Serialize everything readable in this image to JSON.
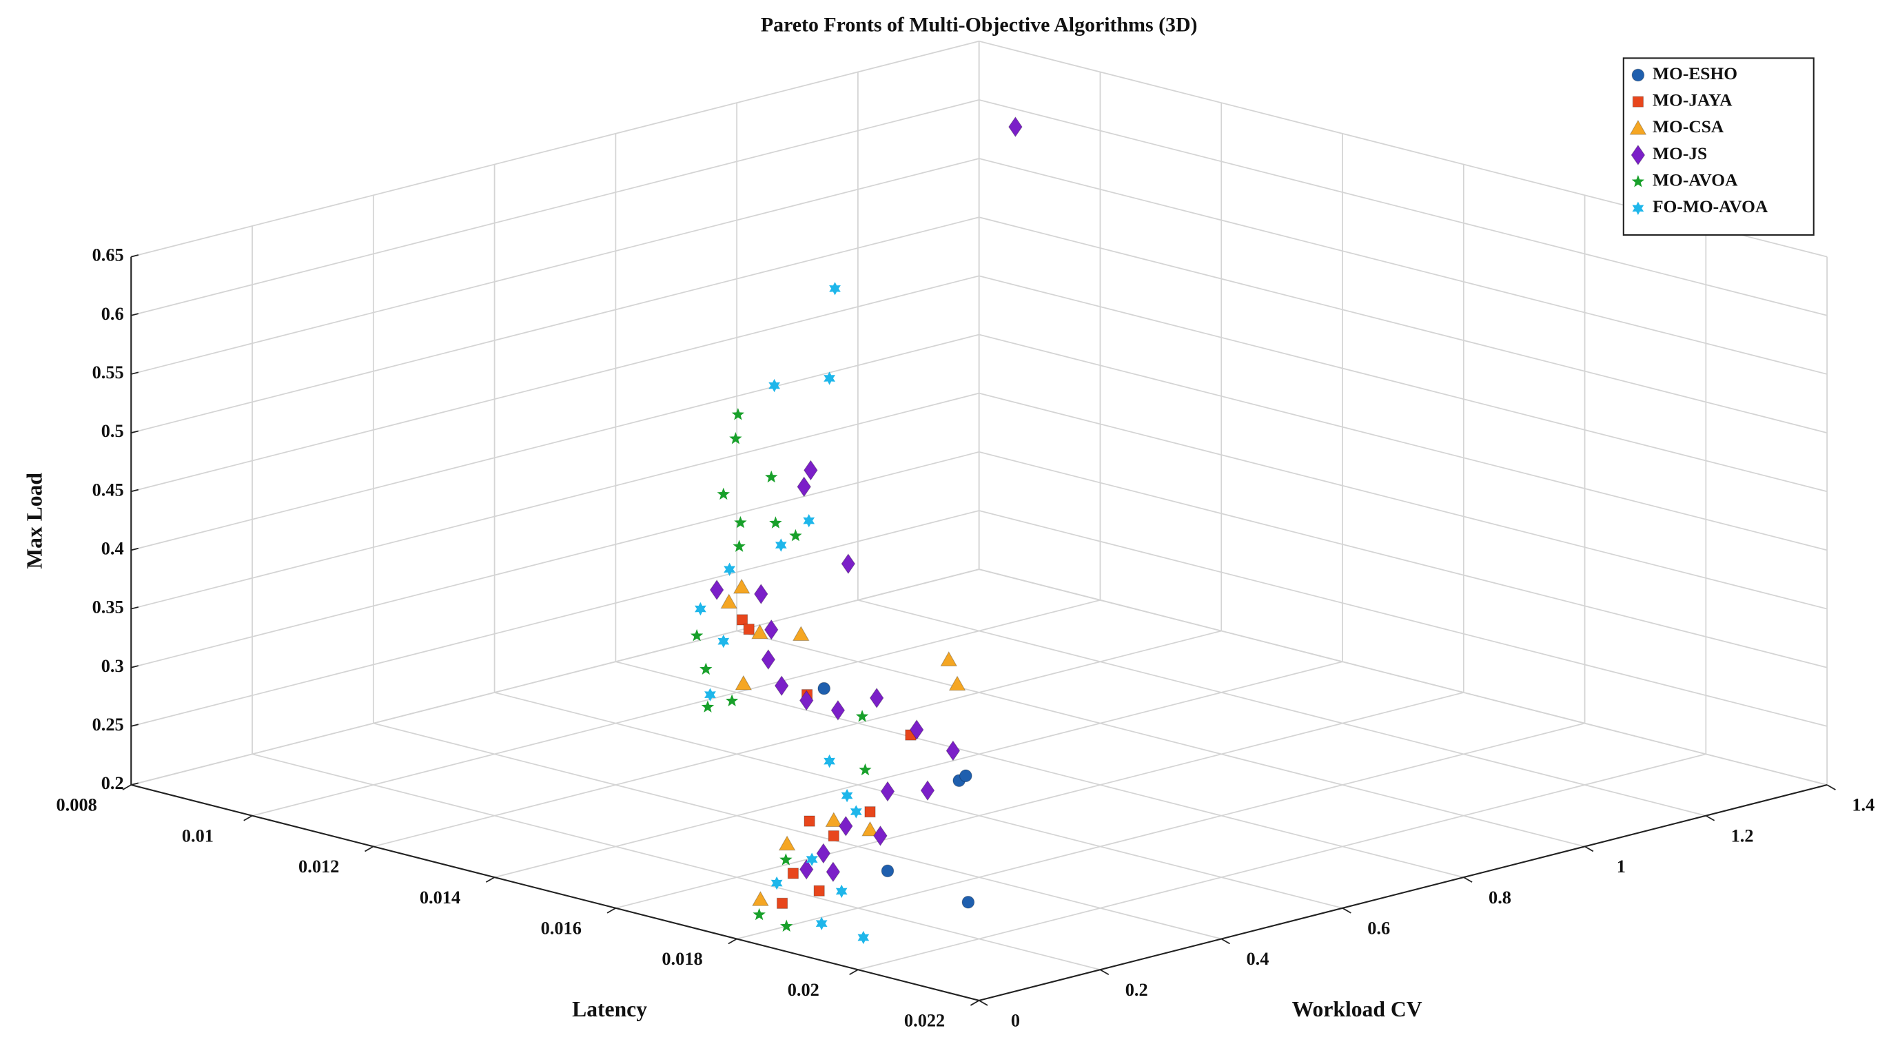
{
  "chart_data": {
    "type": "scatter3d",
    "title": "Pareto Fronts of Multi-Objective Algorithms (3D)",
    "xlabel": "Latency",
    "ylabel": "Workload CV",
    "zlabel": "Max Load",
    "xlim": [
      0.008,
      0.022
    ],
    "ylim": [
      0,
      1.4
    ],
    "zlim": [
      0.2,
      0.65
    ],
    "xticks": [
      0.008,
      0.01,
      0.012,
      0.014,
      0.016,
      0.018,
      0.02,
      0.022
    ],
    "yticks": [
      0,
      0.2,
      0.4,
      0.6,
      0.8,
      1,
      1.2,
      1.4
    ],
    "zticks": [
      0.2,
      0.25,
      0.3,
      0.35,
      0.4,
      0.45,
      0.5,
      0.55,
      0.6,
      0.65
    ],
    "grid": true,
    "legend": "upper right",
    "series": [
      {
        "name": "MO-ESHO",
        "color": "#1f5fae",
        "marker": "circle",
        "x": [
          0.0144,
          0.0166,
          0.0165,
          0.0178,
          0.0191
        ],
        "y": [
          0.504,
          0.507,
          0.528,
          0.269,
          0.272
        ],
        "z": [
          0.3,
          0.25,
          0.25,
          0.22,
          0.21
        ]
      },
      {
        "name": "MO-JAYA",
        "color": "#e8461c",
        "marker": "square",
        "x": [
          0.0134,
          0.013,
          0.0137,
          0.0151,
          0.0165,
          0.0163,
          0.0166,
          0.0171,
          0.0176,
          0.0175
        ],
        "y": [
          0.469,
          0.52,
          0.546,
          0.577,
          0.37,
          0.29,
          0.3,
          0.183,
          0.115,
          0.186
        ],
        "z": [
          0.35,
          0.33,
          0.28,
          0.26,
          0.24,
          0.24,
          0.23,
          0.22,
          0.21,
          0.21
        ]
      },
      {
        "name": "MO-CSA",
        "color": "#f5a623",
        "marker": "triangle",
        "x": [
          0.0131,
          0.0131,
          0.0132,
          0.0136,
          0.0145,
          0.0146,
          0.0132,
          0.0161,
          0.0161,
          0.0173,
          0.0167
        ],
        "y": [
          0.477,
          0.498,
          0.518,
          0.546,
          0.7,
          0.704,
          0.491,
          0.273,
          0.35,
          0.109,
          0.35
        ],
        "z": [
          0.36,
          0.37,
          0.33,
          0.33,
          0.3,
          0.28,
          0.29,
          0.22,
          0.23,
          0.21,
          0.23
        ]
      },
      {
        "name": "MO-JS",
        "color": "#7b1fc8",
        "marker": "diamond",
        "x": [
          0.0107,
          0.0133,
          0.0134,
          0.0136,
          0.0126,
          0.0131,
          0.0132,
          0.013,
          0.0132,
          0.0135,
          0.0137,
          0.014,
          0.0146,
          0.0152,
          0.0159,
          0.0156,
          0.016,
          0.0166,
          0.0167,
          0.017,
          0.0167
        ],
        "y": [
          1.19,
          0.592,
          0.571,
          0.624,
          0.507,
          0.53,
          0.537,
          0.552,
          0.554,
          0.565,
          0.597,
          0.631,
          0.637,
          0.637,
          0.525,
          0.489,
          0.38,
          0.377,
          0.273,
          0.259,
          0.245
        ],
        "z": [
          0.64,
          0.46,
          0.45,
          0.38,
          0.36,
          0.36,
          0.33,
          0.3,
          0.28,
          0.27,
          0.26,
          0.27,
          0.25,
          0.24,
          0.23,
          0.23,
          0.22,
          0.22,
          0.22,
          0.21,
          0.21
        ]
      },
      {
        "name": "MO-AVOA",
        "color": "#18a02a",
        "marker": "star",
        "x": [
          0.0128,
          0.0128,
          0.0132,
          0.0126,
          0.0129,
          0.0132,
          0.0134,
          0.0129,
          0.0124,
          0.0128,
          0.0129,
          0.0129,
          0.0141,
          0.0151,
          0.0166,
          0.018,
          0.0174
        ],
        "y": [
          0.522,
          0.518,
          0.537,
          0.518,
          0.516,
          0.544,
          0.557,
          0.514,
          0.494,
          0.469,
          0.462,
          0.502,
          0.597,
          0.502,
          0.221,
          0.082,
          0.097
        ],
        "z": [
          0.51,
          0.49,
          0.46,
          0.44,
          0.42,
          0.42,
          0.41,
          0.4,
          0.32,
          0.3,
          0.27,
          0.27,
          0.26,
          0.24,
          0.22,
          0.2,
          0.2
        ]
      },
      {
        "name": "FO-MO-AVOA",
        "color": "#1eb6ea",
        "marker": "hexagram",
        "x": [
          0.0137,
          0.0139,
          0.0133,
          0.0134,
          0.0132,
          0.0128,
          0.0127,
          0.0128,
          0.0129,
          0.0149,
          0.0154,
          0.016,
          0.0168,
          0.0177,
          0.0182,
          0.019,
          0.0169
        ],
        "y": [
          0.592,
          0.563,
          0.532,
          0.579,
          0.553,
          0.508,
          0.47,
          0.498,
          0.466,
          0.463,
          0.442,
          0.397,
          0.244,
          0.203,
          0.12,
          0.109,
          0.176
        ],
        "z": [
          0.62,
          0.55,
          0.54,
          0.42,
          0.4,
          0.38,
          0.35,
          0.32,
          0.28,
          0.25,
          0.23,
          0.23,
          0.22,
          0.21,
          0.2,
          0.2,
          0.21
        ]
      }
    ]
  }
}
